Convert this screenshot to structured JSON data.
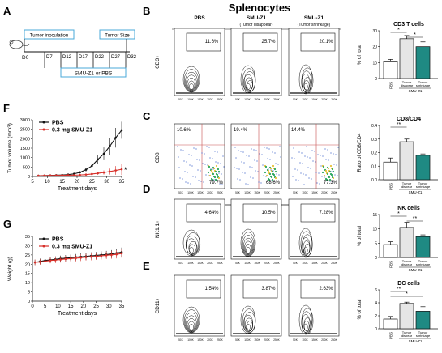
{
  "figure": {
    "header": "Splenocytes",
    "panel_letters": [
      "A",
      "B",
      "C",
      "D",
      "E",
      "F",
      "G"
    ]
  },
  "timeline": {
    "box_inoculation": "Tumor inoculation",
    "box_size": "Tumor Size",
    "box_treatment": "SMU-Z1 or PBS",
    "day0": "D0",
    "days": [
      "D7",
      "D12",
      "D17",
      "D22",
      "D27",
      "D32"
    ]
  },
  "flow": {
    "columns": [
      "PBS",
      "SMU-Z1",
      "SMU-Z1"
    ],
    "column_subs": [
      "",
      "(Tumor disappear)",
      "(Tumor shrinkage)"
    ],
    "xticks": [
      "50K",
      "100K",
      "150K",
      "200K",
      "250K"
    ],
    "rows": [
      {
        "ylabel": "CD3+",
        "gates": [
          "11.6%",
          "25.7%",
          "20.1%"
        ]
      },
      {
        "ylabel": "CD8+",
        "xlabel": "CD4+",
        "top_left": [
          "10.6%",
          "19.4%",
          "14.4%"
        ],
        "bottom_right": [
          "79.7%",
          "68.6%",
          "77.3%"
        ]
      },
      {
        "ylabel": "NK1.1+",
        "gates": [
          "4.64%",
          "10.5%",
          "7.28%"
        ]
      },
      {
        "ylabel": "CD11+",
        "gates": [
          "1.54%",
          "3.87%",
          "2.63%"
        ]
      }
    ]
  },
  "bar_panels": [
    {
      "title": "CD3 T cells",
      "ylabel": "% of total",
      "yticks": [
        "0",
        "10",
        "20",
        "30"
      ],
      "ymax": 30,
      "values": [
        11,
        25,
        20
      ],
      "errors": [
        1,
        2,
        3
      ],
      "sig": [
        [
          "*",
          "0-1"
        ],
        [
          "*",
          "1-2"
        ]
      ],
      "xtick": [
        "PBS",
        "Tumor disapear",
        "Tumor shrinkage"
      ],
      "group": "SMU-Z1"
    },
    {
      "title": "CD8/CD4",
      "ylabel": "Ratio of CD8/CD4",
      "yticks": [
        "0.0",
        "0.1",
        "0.2",
        "0.3",
        "0.4"
      ],
      "ymax": 0.4,
      "values": [
        0.13,
        0.28,
        0.18
      ],
      "errors": [
        0.03,
        0.02,
        0.01
      ],
      "sig": [
        [
          "**",
          "0-1"
        ]
      ],
      "xtick": [
        "PBS",
        "Tumor dispear",
        "Tumor shrinkage"
      ],
      "group": "SMU-Z1"
    },
    {
      "title": "NK cells",
      "ylabel": "% of total",
      "yticks": [
        "0",
        "5",
        "10",
        "15"
      ],
      "ymax": 15,
      "values": [
        4.5,
        10.5,
        7.3
      ],
      "errors": [
        1,
        1.8,
        0.6
      ],
      "sig": [
        [
          "*",
          "0-1"
        ],
        [
          "**",
          "1-2"
        ]
      ],
      "xtick": [
        "PBS",
        "Tumor dispear",
        "Tumor shrinkage"
      ],
      "group": "SMU-Z1"
    },
    {
      "title": "DC cells",
      "ylabel": "% of total",
      "yticks": [
        "0",
        "2",
        "4",
        "6"
      ],
      "ymax": 6,
      "values": [
        1.5,
        3.9,
        2.7
      ],
      "errors": [
        0.4,
        0.2,
        0.7
      ],
      "sig": [
        [
          "**",
          "0-1"
        ],
        [
          "*",
          "0-2"
        ]
      ],
      "xtick": [
        "PBS",
        "Tumor dispear",
        "Tumor shrinkage"
      ],
      "group": "SMU-Z1"
    }
  ],
  "colors": {
    "pbs": "#ffffff",
    "disappear": "#e6e6e6",
    "shrink": "#1f8a83",
    "redline": "#d7302a",
    "blackline": "#111111"
  },
  "chart_data": [
    {
      "type": "line",
      "xlabel": "Treatment days",
      "ylabel": "Tumor volume (mm3)",
      "xlim": [
        5,
        35
      ],
      "ylim": [
        0,
        3000
      ],
      "xticks": [
        5,
        10,
        15,
        20,
        25,
        30,
        35
      ],
      "yticks": [
        0,
        500,
        1000,
        1500,
        2000,
        2500,
        3000
      ],
      "annotation": "*",
      "series": [
        {
          "name": "PBS",
          "x": [
            7,
            9,
            11,
            13,
            15,
            17,
            19,
            21,
            23,
            25,
            27,
            29,
            31,
            33,
            35
          ],
          "values": [
            40,
            45,
            55,
            65,
            80,
            100,
            140,
            220,
            360,
            560,
            900,
            1200,
            1600,
            2050,
            2450
          ],
          "errors": [
            10,
            10,
            15,
            15,
            20,
            25,
            40,
            60,
            100,
            170,
            250,
            340,
            450,
            520,
            450
          ]
        },
        {
          "name": "0.3 mg SMU-Z1",
          "x": [
            7,
            9,
            11,
            13,
            15,
            17,
            19,
            21,
            23,
            25,
            27,
            29,
            31,
            33,
            35
          ],
          "values": [
            40,
            45,
            50,
            55,
            60,
            65,
            70,
            80,
            100,
            130,
            170,
            210,
            260,
            320,
            380
          ],
          "errors": [
            10,
            10,
            10,
            12,
            12,
            15,
            20,
            25,
            35,
            50,
            80,
            110,
            160,
            230,
            300
          ]
        }
      ]
    },
    {
      "type": "line",
      "xlabel": "Treatment days",
      "ylabel": "Weight (g)",
      "xlim": [
        0,
        35
      ],
      "ylim": [
        0,
        35
      ],
      "xticks": [
        0,
        5,
        10,
        15,
        20,
        25,
        30,
        35
      ],
      "yticks": [
        0,
        5,
        10,
        15,
        20,
        25,
        30,
        35
      ],
      "series": [
        {
          "name": "PBS",
          "x": [
            1,
            3,
            5,
            7,
            9,
            11,
            13,
            15,
            17,
            19,
            21,
            23,
            25,
            27,
            29,
            31,
            33,
            35
          ],
          "values": [
            21,
            21.5,
            22,
            22.3,
            22.6,
            23,
            23.2,
            23.5,
            23.8,
            24,
            24.2,
            24.5,
            24.7,
            25,
            25.2,
            25.5,
            26,
            26.5
          ],
          "errors": [
            1.5,
            1.5,
            1.5,
            1.5,
            1.6,
            1.6,
            1.7,
            1.7,
            1.7,
            1.8,
            1.8,
            1.9,
            1.9,
            2,
            2,
            2.1,
            2.2,
            2.5
          ]
        },
        {
          "name": "0.3 mg SMU-Z1",
          "x": [
            1,
            3,
            5,
            7,
            9,
            11,
            13,
            15,
            17,
            19,
            21,
            23,
            25,
            27,
            29,
            31,
            33,
            35
          ],
          "values": [
            21,
            21.2,
            21.6,
            22,
            22.2,
            22.5,
            22.8,
            23,
            23.2,
            23.5,
            23.8,
            24,
            24.2,
            24.5,
            24.8,
            25,
            25.3,
            25.8
          ],
          "errors": [
            1.5,
            1.5,
            1.5,
            1.5,
            1.6,
            1.6,
            1.7,
            1.7,
            1.7,
            1.8,
            1.8,
            1.9,
            1.9,
            2,
            2,
            2.1,
            2.2,
            2.3
          ]
        }
      ]
    }
  ]
}
